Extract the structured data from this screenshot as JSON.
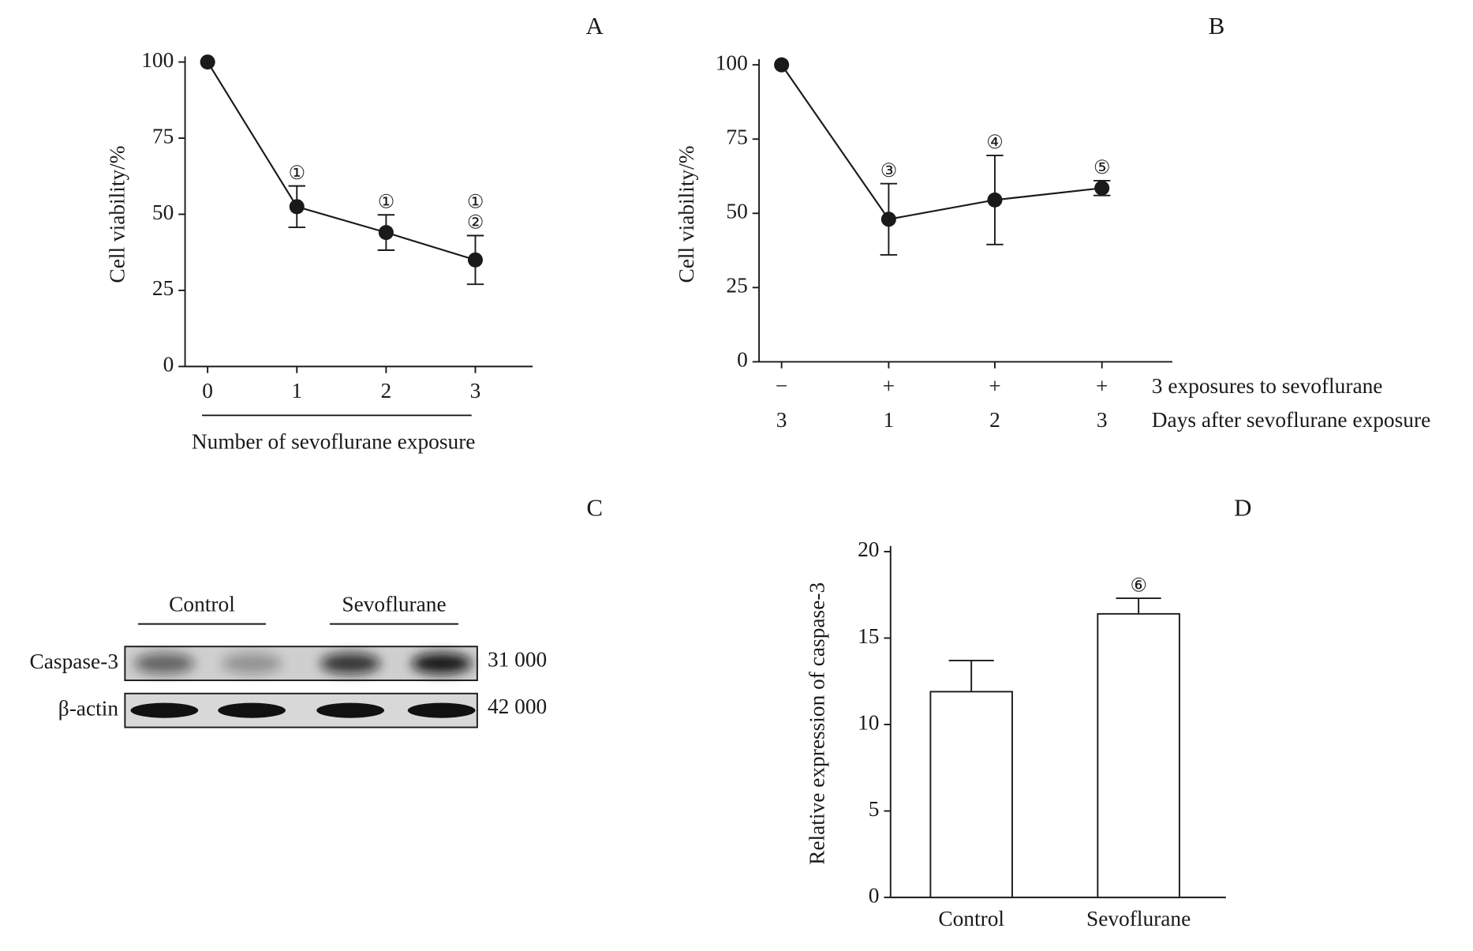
{
  "chart_data": [
    {
      "type": "line",
      "title": "A",
      "categories": [
        "0",
        "1",
        "2",
        "3"
      ],
      "values": [
        100,
        52.5,
        44,
        35
      ],
      "errors": [
        0,
        6.8,
        5.8,
        8
      ],
      "point_labels": [
        null,
        [
          "①"
        ],
        [
          "①"
        ],
        [
          "①",
          "②"
        ]
      ],
      "xlabel": "Number of sevoflurane exposure",
      "ylabel": "Cell viability/%",
      "ylim": [
        0,
        100
      ],
      "yticks": [
        0,
        25,
        50,
        75,
        100
      ],
      "color": "#1a1a1a"
    },
    {
      "type": "line",
      "title": "B",
      "categories": [
        "−",
        "+",
        "+",
        "+"
      ],
      "categories2": [
        "3",
        "1",
        "2",
        "3"
      ],
      "category_rows": [
        "3 exposures to sevoflurane",
        "Days after sevoflurane exposure"
      ],
      "values": [
        100,
        48,
        54.5,
        58.5
      ],
      "errors": [
        0,
        12,
        15,
        2.5
      ],
      "point_labels": [
        null,
        [
          "③"
        ],
        [
          "④"
        ],
        [
          "⑤"
        ]
      ],
      "ylabel": "Cell viability/%",
      "ylim": [
        0,
        100
      ],
      "yticks": [
        0,
        25,
        50,
        75,
        100
      ],
      "color": "#1a1a1a"
    },
    {
      "type": "blot",
      "title": "C",
      "groups": [
        "Control",
        "Sevoflurane"
      ],
      "rows": [
        {
          "name": "Caspase-3",
          "weight": "31 000"
        },
        {
          "name": "β-actin",
          "weight": "42 000"
        }
      ]
    },
    {
      "type": "bar",
      "title": "D",
      "categories": [
        "Control",
        "Sevoflurane"
      ],
      "values": [
        11.9,
        16.4
      ],
      "errors": [
        1.8,
        0.9
      ],
      "point_labels": [
        null,
        [
          "⑥"
        ]
      ],
      "ylabel": "Relative expression of caspase-3",
      "ylim": [
        0,
        20
      ],
      "yticks": [
        0,
        5,
        10,
        15,
        20
      ],
      "color": "#ffffff"
    }
  ]
}
